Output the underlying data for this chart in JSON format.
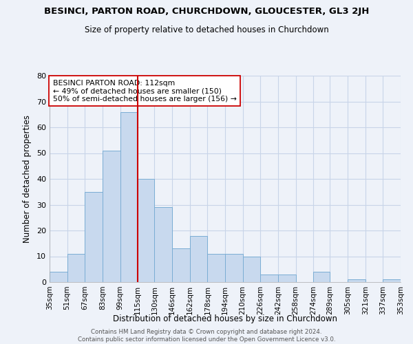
{
  "title": "BESINCI, PARTON ROAD, CHURCHDOWN, GLOUCESTER, GL3 2JH",
  "subtitle": "Size of property relative to detached houses in Churchdown",
  "xlabel": "Distribution of detached houses by size in Churchdown",
  "ylabel": "Number of detached properties",
  "bins": [
    35,
    51,
    67,
    83,
    99,
    115,
    130,
    146,
    162,
    178,
    194,
    210,
    226,
    242,
    258,
    274,
    289,
    305,
    321,
    337,
    353
  ],
  "bin_labels": [
    "35sqm",
    "51sqm",
    "67sqm",
    "83sqm",
    "99sqm",
    "115sqm",
    "130sqm",
    "146sqm",
    "162sqm",
    "178sqm",
    "194sqm",
    "210sqm",
    "226sqm",
    "242sqm",
    "258sqm",
    "274sqm",
    "289sqm",
    "305sqm",
    "321sqm",
    "337sqm",
    "353sqm"
  ],
  "counts": [
    4,
    11,
    35,
    51,
    66,
    40,
    29,
    13,
    18,
    11,
    11,
    10,
    3,
    3,
    0,
    4,
    0,
    1,
    0,
    1
  ],
  "bar_color": "#c8d9ee",
  "bar_edgecolor": "#7aadd4",
  "vline_x": 115,
  "vline_color": "#cc0000",
  "annotation_text": "BESINCI PARTON ROAD: 112sqm\n← 49% of detached houses are smaller (150)\n50% of semi-detached houses are larger (156) →",
  "annotation_box_edgecolor": "#cc0000",
  "annotation_box_facecolor": "white",
  "ylim": [
    0,
    80
  ],
  "yticks": [
    0,
    10,
    20,
    30,
    40,
    50,
    60,
    70,
    80
  ],
  "footer_text": "Contains HM Land Registry data © Crown copyright and database right 2024.\nContains public sector information licensed under the Open Government Licence v3.0.",
  "background_color": "#eef2f9",
  "grid_color": "#c8d4e8"
}
